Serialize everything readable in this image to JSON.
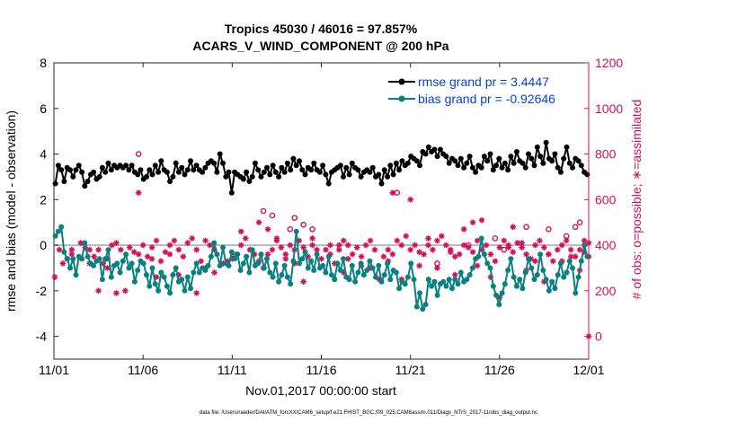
{
  "chart_data": {
    "type": "line",
    "title_line1": "Tropics 45030 / 46016 = 97.857%",
    "title_line2": "ACARS_V_WIND_COMPONENT @ 200 hPa",
    "xlabel": "Nov.01,2017 00:00:00 start",
    "ylabel_left": "rmse and bias (model - observation)",
    "ylabel_right": "# of obs: o=possible; ∗=assimilated",
    "xlim": [
      0,
      30
    ],
    "ylim_left": [
      -5,
      8
    ],
    "ylim_right": [
      -100,
      1200
    ],
    "x_ticks": [
      {
        "value": 0,
        "label": "11/01"
      },
      {
        "value": 5,
        "label": "11/06"
      },
      {
        "value": 10,
        "label": "11/11"
      },
      {
        "value": 15,
        "label": "11/16"
      },
      {
        "value": 20,
        "label": "11/21"
      },
      {
        "value": 25,
        "label": "11/26"
      },
      {
        "value": 30,
        "label": "12/01"
      }
    ],
    "y_ticks_left": [
      {
        "value": -4,
        "label": "-4"
      },
      {
        "value": -2,
        "label": "-2"
      },
      {
        "value": 0,
        "label": "0"
      },
      {
        "value": 2,
        "label": "2"
      },
      {
        "value": 4,
        "label": "4"
      },
      {
        "value": 6,
        "label": "6"
      },
      {
        "value": 8,
        "label": "8"
      }
    ],
    "y_ticks_right": [
      {
        "value": 0,
        "label": "0"
      },
      {
        "value": 200,
        "label": "200"
      },
      {
        "value": 400,
        "label": "400"
      },
      {
        "value": 600,
        "label": "600"
      },
      {
        "value": 800,
        "label": "800"
      },
      {
        "value": 1000,
        "label": "1000"
      },
      {
        "value": 1200,
        "label": "1200"
      }
    ],
    "legend": {
      "position": "top-right",
      "entries": [
        {
          "label": "rmse grand pr = 3.4447",
          "color": "#000000"
        },
        {
          "label": "bias grand pr = -0.92646",
          "color": "#0a8080"
        }
      ]
    },
    "zero_line": 0,
    "colors": {
      "rmse": "#000000",
      "bias": "#0a8080",
      "obs": "#d1105a",
      "legend_text": "#0044dd"
    },
    "time_step_days": 0.25,
    "series": [
      {
        "name": "rmse",
        "axis": "left",
        "values": [
          2.7,
          3.5,
          3.3,
          2.8,
          3.4,
          3.3,
          3.0,
          3.3,
          3.5,
          3.2,
          2.6,
          2.8,
          3.1,
          3.2,
          2.9,
          3.0,
          3.4,
          3.2,
          3.6,
          3.3,
          3.5,
          3.4,
          3.5,
          3.4,
          3.5,
          3.3,
          3.5,
          3.2,
          3.1,
          3.3,
          2.9,
          3.0,
          3.3,
          3.1,
          3.5,
          3.2,
          3.7,
          3.3,
          3.2,
          2.8,
          3.0,
          3.6,
          3.2,
          3.4,
          3.1,
          3.3,
          3.7,
          3.3,
          3.5,
          3.3,
          3.2,
          3.4,
          3.6,
          3.7,
          3.6,
          3.2,
          4.0,
          3.6,
          3.0,
          3.2,
          2.3,
          3.2,
          3.1,
          3.0,
          2.9,
          3.2,
          2.8,
          3.0,
          3.6,
          3.3,
          3.0,
          3.2,
          3.4,
          3.1,
          3.5,
          3.2,
          3.0,
          3.4,
          3.2,
          3.6,
          3.3,
          3.8,
          3.5,
          3.7,
          3.3,
          3.1,
          3.4,
          3.3,
          3.6,
          3.3,
          3.2,
          3.5,
          3.1,
          2.7,
          3.2,
          3.3,
          3.4,
          3.5,
          3.0,
          3.4,
          3.1,
          3.6,
          3.4,
          3.3,
          3.0,
          3.2,
          3.3,
          3.2,
          3.4,
          3.0,
          3.1,
          2.7,
          3.3,
          3.0,
          3.5,
          3.1,
          3.6,
          3.3,
          3.7,
          3.5,
          3.6,
          3.9,
          3.8,
          3.7,
          3.5,
          4.1,
          4.0,
          4.3,
          4.1,
          4.2,
          3.9,
          4.2,
          4.0,
          3.9,
          3.6,
          3.8,
          3.7,
          3.5,
          3.8,
          3.4,
          3.6,
          3.9,
          3.4,
          3.2,
          3.5,
          3.4,
          3.9,
          3.7,
          4.0,
          3.3,
          3.5,
          3.8,
          3.4,
          3.6,
          3.3,
          3.9,
          3.6,
          4.1,
          3.7,
          3.6,
          3.4,
          4.0,
          3.8,
          3.5,
          4.3,
          3.9,
          3.6,
          4.5,
          3.8,
          3.7,
          4.0,
          3.4,
          3.2,
          3.8,
          4.3,
          3.6,
          3.4,
          3.8,
          3.7,
          3.5,
          3.2,
          3.1
        ]
      },
      {
        "name": "bias",
        "axis": "left",
        "values": [
          0.4,
          0.6,
          0.8,
          -0.3,
          -0.6,
          -1.0,
          -0.6,
          -1.3,
          -0.5,
          -0.6,
          0.1,
          -0.5,
          -0.8,
          -0.9,
          -0.7,
          -0.6,
          -1.5,
          -0.6,
          -0.2,
          -1.4,
          -0.9,
          -0.8,
          -1.2,
          -0.7,
          -0.4,
          -1.0,
          -0.8,
          -1.6,
          -1.1,
          -0.7,
          -0.8,
          -1.3,
          -1.8,
          -1.0,
          -1.7,
          -2.0,
          -1.2,
          -1.4,
          -1.8,
          -2.1,
          -1.3,
          -1.0,
          -1.6,
          -1.5,
          -2.0,
          -1.4,
          -1.9,
          -1.2,
          -0.8,
          -1.2,
          -1.0,
          -1.1,
          -0.9,
          -0.5,
          0.1,
          -0.4,
          -0.9,
          -0.1,
          -0.8,
          -0.9,
          -0.3,
          -0.6,
          -0.4,
          -1.1,
          -0.8,
          -0.5,
          -1.2,
          -0.2,
          -0.9,
          -0.8,
          -0.4,
          -1.0,
          -0.6,
          -1.2,
          -1.4,
          -0.8,
          -1.6,
          -1.3,
          -0.9,
          -1.4,
          -1.7,
          -0.7,
          0.6,
          -0.8,
          -0.6,
          -0.3,
          -1.0,
          -0.7,
          -1.1,
          -0.4,
          -1.0,
          -0.9,
          -1.2,
          -0.5,
          -1.3,
          -1.5,
          -0.8,
          -1.1,
          -0.6,
          -1.4,
          -1.5,
          -0.9,
          -1.6,
          -1.2,
          -0.8,
          -1.3,
          -1.1,
          -0.7,
          -1.0,
          -1.4,
          -0.9,
          -1.6,
          -1.3,
          -0.8,
          -1.5,
          -1.1,
          -1.2,
          -1.9,
          -1.6,
          -1.7,
          -1.4,
          -0.8,
          -1.5,
          -2.7,
          -2.1,
          -2.8,
          -2.6,
          -1.5,
          -1.8,
          -1.6,
          -2.2,
          -1.7,
          -1.6,
          -1.8,
          -1.5,
          -1.9,
          -1.5,
          -1.7,
          -1.2,
          -1.6,
          -1.5,
          -1.3,
          -1.0,
          -0.6,
          -0.5,
          0.3,
          -0.4,
          -0.8,
          -1.0,
          -1.8,
          -2.2,
          -2.6,
          -2.1,
          -1.7,
          -1.1,
          -0.6,
          -1.4,
          -1.8,
          -1.5,
          -1.9,
          -1.2,
          -0.6,
          -1.0,
          -1.5,
          -1.3,
          -0.4,
          -1.1,
          -1.5,
          -2.0,
          -1.6,
          -1.9,
          -1.3,
          -0.8,
          -1.4,
          -1.2,
          -0.7,
          -1.0,
          -2.1,
          -1.4,
          -0.7,
          0.0,
          -0.5
        ]
      },
      {
        "name": "obs_assimilated",
        "axis": "right",
        "style": "asterisk",
        "points": [
          [
            0.05,
            260
          ],
          [
            0.3,
            380
          ],
          [
            0.5,
            320
          ],
          [
            0.75,
            340
          ],
          [
            1.0,
            360
          ],
          [
            1.5,
            410
          ],
          [
            1.75,
            390
          ],
          [
            2.0,
            380
          ],
          [
            2.25,
            350
          ],
          [
            2.5,
            380
          ],
          [
            2.75,
            320
          ],
          [
            3.0,
            300
          ],
          [
            3.25,
            400
          ],
          [
            3.5,
            410
          ],
          [
            3.75,
            380
          ],
          [
            4.0,
            200
          ],
          [
            4.25,
            390
          ],
          [
            4.5,
            370
          ],
          [
            4.75,
            360
          ],
          [
            5.0,
            400
          ],
          [
            5.25,
            350
          ],
          [
            5.5,
            390
          ],
          [
            5.75,
            420
          ],
          [
            6.0,
            330
          ],
          [
            6.25,
            370
          ],
          [
            6.5,
            400
          ],
          [
            6.75,
            420
          ],
          [
            7.0,
            380
          ],
          [
            7.25,
            350
          ],
          [
            7.5,
            410
          ],
          [
            7.75,
            430
          ],
          [
            8.0,
            380
          ],
          [
            8.25,
            330
          ],
          [
            8.5,
            420
          ],
          [
            8.75,
            400
          ],
          [
            9.0,
            380
          ],
          [
            9.5,
            320
          ],
          [
            10.0,
            340
          ],
          [
            10.25,
            360
          ],
          [
            10.5,
            400
          ],
          [
            10.75,
            430
          ],
          [
            11.0,
            380
          ],
          [
            11.25,
            360
          ],
          [
            11.5,
            330
          ],
          [
            11.75,
            300
          ],
          [
            12.0,
            360
          ],
          [
            12.25,
            380
          ],
          [
            12.5,
            420
          ],
          [
            12.75,
            390
          ],
          [
            13.0,
            360
          ],
          [
            13.25,
            400
          ],
          [
            13.5,
            380
          ],
          [
            13.75,
            420
          ],
          [
            14.0,
            390
          ],
          [
            14.25,
            350
          ],
          [
            14.5,
            400
          ],
          [
            14.75,
            380
          ],
          [
            15.0,
            340
          ],
          [
            15.25,
            380
          ],
          [
            15.5,
            360
          ],
          [
            15.75,
            320
          ],
          [
            16.0,
            380
          ],
          [
            16.25,
            420
          ],
          [
            16.5,
            400
          ],
          [
            16.75,
            360
          ],
          [
            17.0,
            390
          ],
          [
            17.25,
            350
          ],
          [
            17.5,
            400
          ],
          [
            17.75,
            420
          ],
          [
            18.0,
            380
          ],
          [
            18.5,
            350
          ],
          [
            18.75,
            380
          ],
          [
            19.0,
            360
          ],
          [
            19.25,
            420
          ],
          [
            19.5,
            400
          ],
          [
            19.75,
            440
          ],
          [
            20.0,
            380
          ],
          [
            20.25,
            400
          ],
          [
            20.5,
            370
          ],
          [
            20.75,
            360
          ],
          [
            21.0,
            400
          ],
          [
            21.25,
            380
          ],
          [
            21.5,
            420
          ],
          [
            21.75,
            440
          ],
          [
            22.0,
            400
          ],
          [
            22.25,
            380
          ],
          [
            22.5,
            350
          ],
          [
            22.75,
            360
          ],
          [
            23.0,
            400
          ],
          [
            23.25,
            390
          ],
          [
            23.5,
            370
          ],
          [
            23.75,
            420
          ],
          [
            24.0,
            380
          ],
          [
            24.25,
            400
          ],
          [
            24.5,
            360
          ],
          [
            24.75,
            330
          ],
          [
            25.0,
            390
          ],
          [
            25.25,
            420
          ],
          [
            25.5,
            400
          ],
          [
            25.75,
            370
          ],
          [
            26.0,
            410
          ],
          [
            26.25,
            390
          ],
          [
            26.5,
            360
          ],
          [
            26.75,
            340
          ],
          [
            27.0,
            400
          ],
          [
            27.25,
            420
          ],
          [
            27.5,
            390
          ],
          [
            27.75,
            360
          ],
          [
            28.0,
            330
          ],
          [
            28.25,
            380
          ],
          [
            28.5,
            400
          ],
          [
            28.75,
            420
          ],
          [
            29.0,
            380
          ],
          [
            29.25,
            350
          ],
          [
            29.5,
            380
          ],
          [
            29.75,
            420
          ],
          [
            30.0,
            410
          ],
          [
            1.0,
            380
          ],
          [
            2.0,
            320
          ],
          [
            2.5,
            200
          ],
          [
            3.0,
            340
          ],
          [
            3.5,
            190
          ],
          [
            4.75,
            630
          ],
          [
            5.5,
            340
          ],
          [
            5.75,
            260
          ],
          [
            6.5,
            360
          ],
          [
            7.0,
            270
          ],
          [
            8.0,
            190
          ],
          [
            8.5,
            300
          ],
          [
            9.0,
            280
          ],
          [
            9.75,
            330
          ],
          [
            10.5,
            460
          ],
          [
            11.0,
            380
          ],
          [
            11.5,
            500
          ],
          [
            12.0,
            470
          ],
          [
            12.5,
            430
          ],
          [
            13.0,
            340
          ],
          [
            13.5,
            320
          ],
          [
            14.0,
            240
          ],
          [
            14.5,
            430
          ],
          [
            15.5,
            400
          ],
          [
            16.0,
            400
          ],
          [
            16.25,
            280
          ],
          [
            16.5,
            340
          ],
          [
            17.25,
            310
          ],
          [
            17.75,
            300
          ],
          [
            18.25,
            250
          ],
          [
            18.75,
            330
          ],
          [
            19.0,
            630
          ],
          [
            19.5,
            250
          ],
          [
            20.0,
            600
          ],
          [
            20.5,
            310
          ],
          [
            21.0,
            430
          ],
          [
            21.5,
            300
          ],
          [
            22.25,
            370
          ],
          [
            22.5,
            270
          ],
          [
            23.0,
            470
          ],
          [
            23.5,
            500
          ],
          [
            23.75,
            310
          ],
          [
            24.0,
            510
          ],
          [
            24.5,
            260
          ],
          [
            25.0,
            170
          ],
          [
            25.5,
            390
          ],
          [
            25.75,
            480
          ],
          [
            26.25,
            410
          ],
          [
            26.5,
            290
          ],
          [
            27.0,
            330
          ],
          [
            27.5,
            240
          ],
          [
            27.75,
            360
          ],
          [
            28.5,
            330
          ],
          [
            29.0,
            350
          ],
          [
            29.5,
            290
          ],
          [
            29.75,
            370
          ],
          [
            30.0,
            350
          ]
        ]
      },
      {
        "name": "obs_possible",
        "axis": "right",
        "style": "circle",
        "points": [
          [
            4.75,
            800
          ],
          [
            11.75,
            550
          ],
          [
            12.25,
            530
          ],
          [
            13.25,
            470
          ],
          [
            13.5,
            520
          ],
          [
            14.0,
            490
          ],
          [
            14.5,
            470
          ],
          [
            19.25,
            630
          ],
          [
            21.5,
            320
          ],
          [
            23.25,
            400
          ],
          [
            24.75,
            430
          ],
          [
            25.25,
            380
          ],
          [
            26.5,
            480
          ],
          [
            27.75,
            470
          ],
          [
            28.75,
            440
          ],
          [
            29.5,
            500
          ],
          [
            29.25,
            480
          ]
        ]
      },
      {
        "name": "obs_endpoint",
        "axis": "right",
        "style": "asterisk",
        "points": [
          [
            30.0,
            0
          ]
        ]
      }
    ]
  }
}
